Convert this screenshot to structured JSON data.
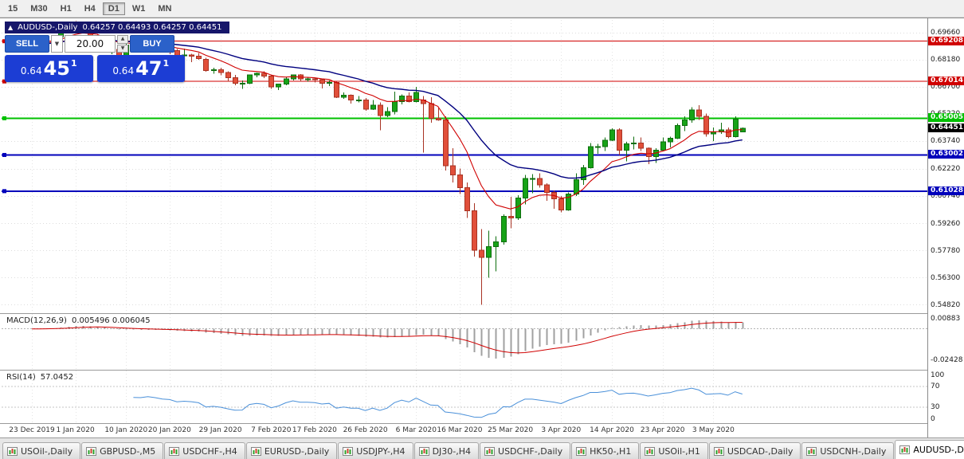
{
  "toolbar": {
    "periods": [
      {
        "label": "15",
        "selected": false
      },
      {
        "label": "M30",
        "selected": false
      },
      {
        "label": "H1",
        "selected": false
      },
      {
        "label": "H4",
        "selected": false
      },
      {
        "label": "D1",
        "selected": true
      },
      {
        "label": "W1",
        "selected": false
      },
      {
        "label": "MN",
        "selected": false
      }
    ]
  },
  "chart_header": {
    "symbol": "AUDUSD-,Daily",
    "ohlc": "0.64257 0.64493 0.64257 0.64451"
  },
  "trade_panel": {
    "sell_button": "SELL",
    "buy_button": "BUY",
    "volume_value": "20.00",
    "sell_price": {
      "prefix": "0.64",
      "big": "45",
      "sup": "1"
    },
    "buy_price": {
      "prefix": "0.64",
      "big": "47",
      "sup": "1"
    },
    "button_color": "#2b61c9",
    "price_box_color": "#1c3dd4"
  },
  "chart_data": {
    "type": "candlestick",
    "symbol": "AUDUSD-",
    "timeframe": "Daily",
    "ylim": [
      0.5437,
      0.7037
    ],
    "grid_labels": [
      "0.69660",
      "0.68180",
      "0.66700",
      "0.65220",
      "0.63740",
      "0.62220",
      "0.60740",
      "0.59260",
      "0.57780",
      "0.56300",
      "0.54820"
    ],
    "x_labels": [
      {
        "i": 0,
        "t": "23 Dec 2019"
      },
      {
        "i": 6,
        "t": "1 Jan 2020"
      },
      {
        "i": 13,
        "t": "10 Jan 2020"
      },
      {
        "i": 19,
        "t": "20 Jan 2020"
      },
      {
        "i": 26,
        "t": "29 Jan 2020"
      },
      {
        "i": 33,
        "t": "7 Feb 2020"
      },
      {
        "i": 39,
        "t": "17 Feb 2020"
      },
      {
        "i": 46,
        "t": "26 Feb 2020"
      },
      {
        "i": 53,
        "t": "6 Mar 2020"
      },
      {
        "i": 59,
        "t": "16 Mar 2020"
      },
      {
        "i": 66,
        "t": "25 Mar 2020"
      },
      {
        "i": 73,
        "t": "3 Apr 2020"
      },
      {
        "i": 80,
        "t": "14 Apr 2020"
      },
      {
        "i": 87,
        "t": "23 Apr 2020"
      },
      {
        "i": 94,
        "t": "3 May 2020"
      }
    ],
    "hlines": [
      {
        "value": 0.69208,
        "label": "0.69208",
        "color": "#d00000",
        "width": 1
      },
      {
        "value": 0.67014,
        "label": "0.67014",
        "color": "#d00000",
        "width": 1
      },
      {
        "value": 0.65005,
        "label": "0.65005",
        "color": "#00c000",
        "width": 2
      },
      {
        "value": 0.63002,
        "label": "0.63002",
        "color": "#0000bb",
        "width": 2
      },
      {
        "value": 0.61028,
        "label": "0.61028",
        "color": "#0000bb",
        "width": 2
      }
    ],
    "current_price": {
      "value": 0.64451,
      "label": "0.64451",
      "badge_color": "#000000"
    },
    "indicators": {
      "ma_fast": 10,
      "ma_slow": 25,
      "macd_fast": 12,
      "macd_slow": 26,
      "macd_signal": 9,
      "rsi_period": 14
    },
    "macd": {
      "label": "MACD(12,26,9)",
      "values_text": "0.005496 0.006045",
      "axis_labels": [
        "0.00883",
        "-0.02428"
      ],
      "ylim": [
        -0.0315,
        0.0115
      ]
    },
    "rsi": {
      "label": "RSI(14)",
      "value_text": "57.0452",
      "axis_labels": [
        "100",
        "70",
        "30",
        "0"
      ],
      "levels": [
        70,
        30
      ],
      "ylim": [
        0,
        100
      ]
    },
    "colors": {
      "up": "#17a317",
      "up_edge": "#0e6f0e",
      "down": "#e14f3a",
      "down_edge": "#a83323",
      "grid": "#dcdcdc",
      "ma_fast": "#d00000",
      "ma_slow": "#00007f",
      "macd_hist": "#a0a0a0",
      "macd_signal": "#d00000",
      "rsi": "#4a90d9"
    },
    "candles": [
      [
        0.6895,
        0.6915,
        0.6885,
        0.6905
      ],
      [
        0.6905,
        0.6925,
        0.6895,
        0.692
      ],
      [
        0.692,
        0.6938,
        0.6912,
        0.693
      ],
      [
        0.693,
        0.6955,
        0.692,
        0.6946
      ],
      [
        0.6946,
        0.6995,
        0.694,
        0.6986
      ],
      [
        0.6986,
        0.7025,
        0.698,
        0.7018
      ],
      [
        0.7018,
        0.703,
        0.7004,
        0.701
      ],
      [
        0.701,
        0.7022,
        0.6985,
        0.6998
      ],
      [
        0.6998,
        0.7004,
        0.6945,
        0.6952
      ],
      [
        0.6952,
        0.6962,
        0.6925,
        0.694
      ],
      [
        0.694,
        0.695,
        0.6858,
        0.6866
      ],
      [
        0.6866,
        0.689,
        0.685,
        0.6876
      ],
      [
        0.6876,
        0.6882,
        0.6834,
        0.684
      ],
      [
        0.684,
        0.691,
        0.6836,
        0.69
      ],
      [
        0.69,
        0.692,
        0.6878,
        0.6896
      ],
      [
        0.6896,
        0.6906,
        0.6862,
        0.6894
      ],
      [
        0.6894,
        0.6925,
        0.688,
        0.6906
      ],
      [
        0.6906,
        0.693,
        0.688,
        0.6894
      ],
      [
        0.6894,
        0.6902,
        0.6864,
        0.6876
      ],
      [
        0.6876,
        0.6882,
        0.685,
        0.687
      ],
      [
        0.687,
        0.6878,
        0.6826,
        0.6841
      ],
      [
        0.6841,
        0.688,
        0.683,
        0.6846
      ],
      [
        0.6846,
        0.6852,
        0.6806,
        0.684
      ],
      [
        0.684,
        0.6856,
        0.682,
        0.6827
      ],
      [
        0.6821,
        0.6831,
        0.6754,
        0.6761
      ],
      [
        0.6761,
        0.6776,
        0.6744,
        0.6766
      ],
      [
        0.6766,
        0.6776,
        0.6734,
        0.6751
      ],
      [
        0.6751,
        0.6756,
        0.67,
        0.6721
      ],
      [
        0.6721,
        0.6736,
        0.668,
        0.6691
      ],
      [
        0.6691,
        0.6706,
        0.6662,
        0.6692
      ],
      [
        0.6692,
        0.674,
        0.6686,
        0.6736
      ],
      [
        0.6736,
        0.675,
        0.6724,
        0.6746
      ],
      [
        0.6746,
        0.6756,
        0.672,
        0.6731
      ],
      [
        0.6731,
        0.6736,
        0.6662,
        0.6671
      ],
      [
        0.6671,
        0.669,
        0.6655,
        0.6686
      ],
      [
        0.6686,
        0.6726,
        0.668,
        0.6716
      ],
      [
        0.6716,
        0.674,
        0.6706,
        0.6736
      ],
      [
        0.6736,
        0.6741,
        0.67,
        0.6716
      ],
      [
        0.6716,
        0.6726,
        0.67,
        0.6716
      ],
      [
        0.6716,
        0.6721,
        0.6696,
        0.6711
      ],
      [
        0.6711,
        0.6716,
        0.6664,
        0.6691
      ],
      [
        0.6691,
        0.6706,
        0.6676,
        0.6696
      ],
      [
        0.6696,
        0.6701,
        0.661,
        0.6616
      ],
      [
        0.6616,
        0.6641,
        0.6606,
        0.6626
      ],
      [
        0.6626,
        0.6631,
        0.658,
        0.6601
      ],
      [
        0.6601,
        0.6621,
        0.6586,
        0.6601
      ],
      [
        0.6601,
        0.6611,
        0.6542,
        0.6551
      ],
      [
        0.6551,
        0.6601,
        0.6546,
        0.6571
      ],
      [
        0.6571,
        0.6586,
        0.6434,
        0.6516
      ],
      [
        0.6516,
        0.6561,
        0.6506,
        0.6536
      ],
      [
        0.6536,
        0.6646,
        0.6521,
        0.6591
      ],
      [
        0.6591,
        0.6631,
        0.6576,
        0.6621
      ],
      [
        0.6621,
        0.6641,
        0.6586,
        0.6591
      ],
      [
        0.6591,
        0.6671,
        0.6586,
        0.6641
      ],
      [
        0.6601,
        0.6621,
        0.6313,
        0.6581
      ],
      [
        0.6581,
        0.6616,
        0.6476,
        0.6501
      ],
      [
        0.6501,
        0.6556,
        0.6486,
        0.6491
      ],
      [
        0.6491,
        0.6511,
        0.6216,
        0.6241
      ],
      [
        0.6241,
        0.6336,
        0.6151,
        0.6191
      ],
      [
        0.6191,
        0.6226,
        0.6086,
        0.6121
      ],
      [
        0.6121,
        0.6151,
        0.5956,
        0.5996
      ],
      [
        0.5996,
        0.6036,
        0.5746,
        0.5781
      ],
      [
        0.5781,
        0.5896,
        0.5482,
        0.5741
      ],
      [
        0.5741,
        0.5886,
        0.5631,
        0.5801
      ],
      [
        0.5801,
        0.5856,
        0.5666,
        0.5826
      ],
      [
        0.5826,
        0.5976,
        0.5811,
        0.5966
      ],
      [
        0.5966,
        0.6071,
        0.5901,
        0.5956
      ],
      [
        0.5956,
        0.6081,
        0.5946,
        0.6066
      ],
      [
        0.6066,
        0.6191,
        0.6031,
        0.6171
      ],
      [
        0.6171,
        0.6196,
        0.6091,
        0.6171
      ],
      [
        0.6171,
        0.6201,
        0.6121,
        0.6136
      ],
      [
        0.6136,
        0.6146,
        0.6051,
        0.6096
      ],
      [
        0.6096,
        0.6106,
        0.6006,
        0.6061
      ],
      [
        0.6061,
        0.6076,
        0.5986,
        0.6001
      ],
      [
        0.6001,
        0.6096,
        0.5996,
        0.6086
      ],
      [
        0.6086,
        0.6201,
        0.6076,
        0.6166
      ],
      [
        0.6166,
        0.6246,
        0.6136,
        0.6231
      ],
      [
        0.6231,
        0.6366,
        0.6226,
        0.6346
      ],
      [
        0.6346,
        0.6361,
        0.6306,
        0.6346
      ],
      [
        0.6346,
        0.6396,
        0.6321,
        0.6381
      ],
      [
        0.6381,
        0.6446,
        0.6376,
        0.6436
      ],
      [
        0.6436,
        0.6446,
        0.6301,
        0.6326
      ],
      [
        0.6326,
        0.6371,
        0.6266,
        0.6361
      ],
      [
        0.6361,
        0.6401,
        0.6331,
        0.6366
      ],
      [
        0.6366,
        0.6396,
        0.6321,
        0.6336
      ],
      [
        0.6336,
        0.6341,
        0.6251,
        0.6291
      ],
      [
        0.6291,
        0.6336,
        0.6256,
        0.6326
      ],
      [
        0.6326,
        0.6396,
        0.6321,
        0.6371
      ],
      [
        0.6371,
        0.6401,
        0.6341,
        0.6391
      ],
      [
        0.6391,
        0.6471,
        0.6386,
        0.6461
      ],
      [
        0.6461,
        0.6511,
        0.6431,
        0.6491
      ],
      [
        0.6491,
        0.6561,
        0.6476,
        0.6546
      ],
      [
        0.6546,
        0.6571,
        0.6491,
        0.6511
      ],
      [
        0.6511,
        0.6526,
        0.6401,
        0.6416
      ],
      [
        0.6416,
        0.6451,
        0.6376,
        0.6426
      ],
      [
        0.6426,
        0.6476,
        0.6416,
        0.6436
      ],
      [
        0.6436,
        0.6451,
        0.6391,
        0.6401
      ],
      [
        0.6401,
        0.6511,
        0.6396,
        0.6496
      ],
      [
        0.64257,
        0.64493,
        0.64257,
        0.64451
      ]
    ]
  },
  "tabs": [
    {
      "label": "USOil-,Daily",
      "active": false
    },
    {
      "label": "GBPUSD-,M5",
      "active": false
    },
    {
      "label": "USDCHF-,H4",
      "active": false
    },
    {
      "label": "EURUSD-,Daily",
      "active": false
    },
    {
      "label": "USDJPY-,H4",
      "active": false
    },
    {
      "label": "DJ30-,H4",
      "active": false
    },
    {
      "label": "USDCHF-,Daily",
      "active": false
    },
    {
      "label": "HK50-,H1",
      "active": false
    },
    {
      "label": "USOil-,H1",
      "active": false
    },
    {
      "label": "USDCAD-,Daily",
      "active": false
    },
    {
      "label": "USDCNH-,Daily",
      "active": false
    },
    {
      "label": "AUDUSD-,Daily",
      "active": true
    }
  ]
}
